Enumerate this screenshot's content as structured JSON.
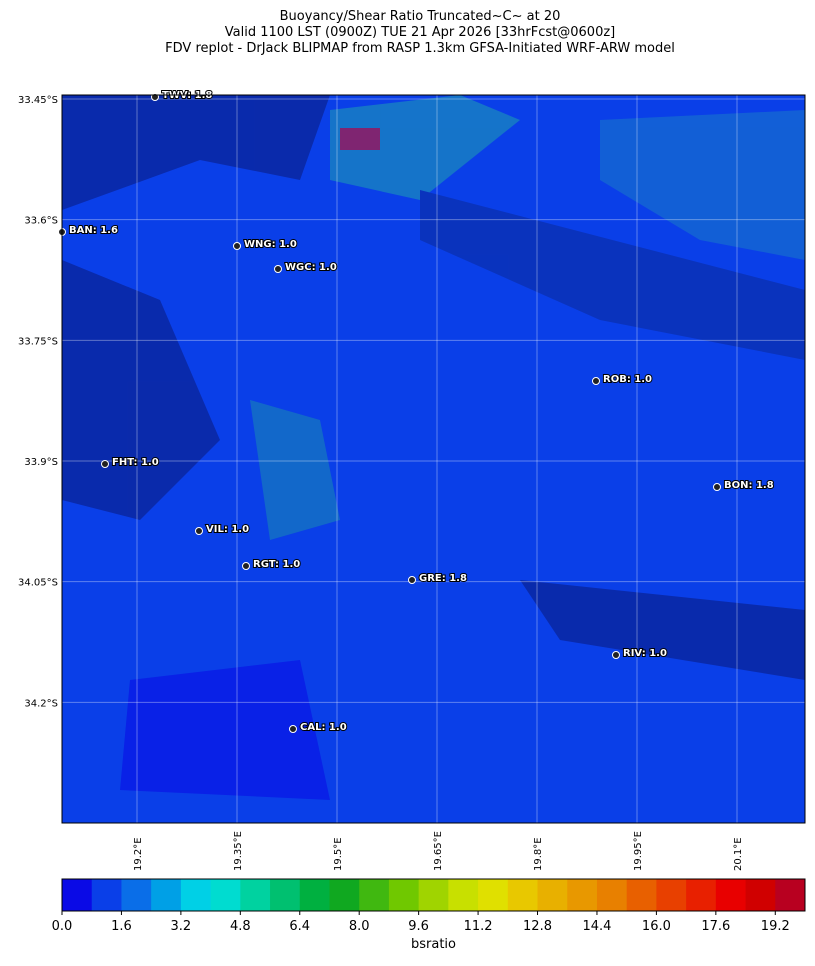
{
  "map": {
    "title_lines": [
      "Buoyancy/Shear Ratio Truncated~C~    at 20",
      "Valid 1100 LST (0900Z) TUE 21 Apr 2026 [33hrFcst@0600z]",
      "FDV replot - DrJack BLIPMAP from RASP 1.3km GFSA-Initiated WRF-ARW model"
    ],
    "xlim": [
      19.0875,
      20.202
    ],
    "ylim": [
      -34.35,
      -33.445
    ],
    "xticks": [
      {
        "value": 19.2,
        "label": "19.2°E"
      },
      {
        "value": 19.35,
        "label": "19.35°E"
      },
      {
        "value": 19.5,
        "label": "19.5°E"
      },
      {
        "value": 19.65,
        "label": "19.65°E"
      },
      {
        "value": 19.8,
        "label": "19.8°E"
      },
      {
        "value": 19.95,
        "label": "19.95°E"
      },
      {
        "value": 20.1,
        "label": "20.1°E"
      }
    ],
    "yticks": [
      {
        "value": -33.45,
        "label": "33.45°S"
      },
      {
        "value": -33.6,
        "label": "33.6°S"
      },
      {
        "value": -33.75,
        "label": "33.75°S"
      },
      {
        "value": -33.9,
        "label": "33.9°S"
      },
      {
        "value": -34.05,
        "label": "34.05°S"
      },
      {
        "value": -34.2,
        "label": "34.2°S"
      }
    ],
    "stations": [
      "TWV: 1.8",
      "BAN: 1.6",
      "WNG: 1.0",
      "WGC: 1.0",
      "ROB: 1.0",
      "FHT: 1.0",
      "BON: 1.8",
      "VIL: 1.0",
      "RGT: 1.0",
      "GRE: 1.8",
      "RIV: 1.0",
      "CAL: 1.0"
    ],
    "colorbar": {
      "label": "bsratio",
      "lim": [
        0,
        20
      ],
      "ticks": [
        {
          "value": 0,
          "label": "0.0"
        },
        {
          "value": 1.6,
          "label": "1.6"
        },
        {
          "value": 3.2,
          "label": "3.2"
        },
        {
          "value": 4.8,
          "label": "4.8"
        },
        {
          "value": 6.4,
          "label": "6.4"
        },
        {
          "value": 8,
          "label": "8.0"
        },
        {
          "value": 9.6,
          "label": "9.6"
        },
        {
          "value": 11.2,
          "label": "11.2"
        },
        {
          "value": 12.8,
          "label": "12.8"
        },
        {
          "value": 14.4,
          "label": "14.4"
        },
        {
          "value": 16,
          "label": "16.0"
        },
        {
          "value": 17.6,
          "label": "17.6"
        },
        {
          "value": 19.2,
          "label": "19.2"
        }
      ],
      "colors": [
        "#0a0ae6",
        "#0a3fe8",
        "#0a6ee8",
        "#00a0e6",
        "#00d0e6",
        "#00dcd0",
        "#00d2a0",
        "#00c070",
        "#00b040",
        "#10a820",
        "#40b810",
        "#70c800",
        "#a0d400",
        "#c8e000",
        "#e0e000",
        "#e8c800",
        "#e8b000",
        "#e89800",
        "#e88000",
        "#e86000",
        "#e84000",
        "#e82000",
        "#e80000",
        "#d00000",
        "#b80020"
      ]
    }
  }
}
